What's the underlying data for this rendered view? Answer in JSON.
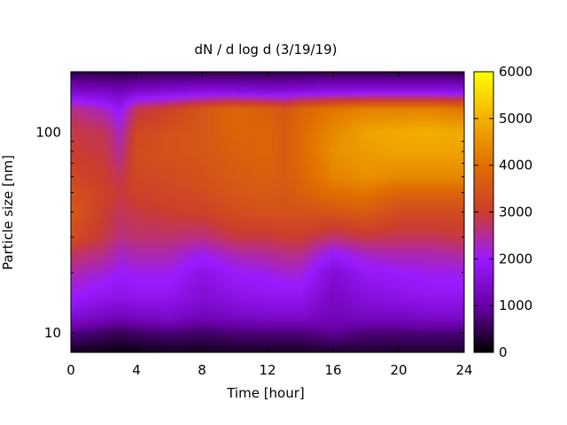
{
  "chart_data": {
    "type": "heatmap",
    "title": "dN / d log d (3/19/19)",
    "xlabel": "Time [hour]",
    "ylabel": "Particle size [nm]",
    "xlim": [
      0,
      24
    ],
    "xticks": [
      0,
      4,
      8,
      12,
      16,
      20,
      24
    ],
    "y_scale": "log",
    "ylim": [
      8,
      200
    ],
    "yticks": [
      10,
      100
    ],
    "colorbar": {
      "min": 0,
      "max": 6000,
      "ticks": [
        0,
        1000,
        2000,
        3000,
        4000,
        5000,
        6000
      ]
    },
    "colormap": [
      "#000000",
      "#6a00a8",
      "#9a1bff",
      "#cc3d2e",
      "#e06f00",
      "#f3b000",
      "#ffff00"
    ],
    "grid": false,
    "x_hours": [
      0,
      2,
      3,
      4,
      6,
      8,
      10,
      12,
      13,
      14,
      16,
      18,
      20,
      22,
      24
    ],
    "size_nm": [
      8,
      10,
      12,
      15,
      20,
      25,
      30,
      40,
      50,
      60,
      80,
      100,
      130,
      160,
      200
    ],
    "dN_dlogd": [
      [
        200,
        800,
        1500,
        2000,
        2400,
        2800,
        3300,
        3600,
        3400,
        3200,
        3000,
        2900,
        2600,
        1400,
        400
      ],
      [
        150,
        600,
        1300,
        1800,
        2200,
        2600,
        2900,
        3000,
        3100,
        3000,
        2900,
        2800,
        2300,
        1300,
        400
      ],
      [
        100,
        500,
        1200,
        1700,
        2000,
        2300,
        2600,
        2800,
        2900,
        2800,
        2500,
        2300,
        1900,
        1200,
        400
      ],
      [
        150,
        600,
        1300,
        1800,
        2100,
        2400,
        2700,
        2900,
        3100,
        3200,
        3300,
        3200,
        2800,
        1400,
        400
      ],
      [
        200,
        700,
        1400,
        1800,
        2100,
        2400,
        2700,
        3000,
        3200,
        3300,
        3400,
        3400,
        3100,
        1500,
        400
      ],
      [
        200,
        600,
        1200,
        1500,
        1700,
        2100,
        2600,
        3100,
        3300,
        3400,
        3500,
        3500,
        3500,
        1600,
        400
      ],
      [
        250,
        700,
        1300,
        1700,
        2000,
        2400,
        2900,
        3300,
        3500,
        3600,
        3700,
        3800,
        3800,
        1600,
        400
      ],
      [
        250,
        700,
        1400,
        1800,
        2100,
        2500,
        2900,
        3400,
        3600,
        3700,
        3800,
        3800,
        3700,
        1500,
        400
      ],
      [
        250,
        700,
        1400,
        1800,
        2200,
        2600,
        3000,
        3400,
        3500,
        3600,
        3600,
        3600,
        3500,
        1500,
        400
      ],
      [
        250,
        700,
        1400,
        1800,
        2200,
        2600,
        3000,
        3400,
        3700,
        3800,
        3900,
        3900,
        3800,
        1600,
        400
      ],
      [
        300,
        900,
        1200,
        1300,
        1500,
        2000,
        2700,
        3500,
        4000,
        4300,
        4500,
        4400,
        4100,
        1700,
        400
      ],
      [
        300,
        700,
        1300,
        1600,
        1900,
        2300,
        2900,
        3600,
        4100,
        4500,
        4700,
        4800,
        4300,
        1700,
        400
      ],
      [
        300,
        700,
        1300,
        1700,
        2000,
        2400,
        2800,
        3300,
        3800,
        4400,
        4800,
        4900,
        4300,
        1700,
        400
      ],
      [
        300,
        700,
        1400,
        1800,
        2100,
        2400,
        2800,
        3300,
        3800,
        4400,
        4800,
        5000,
        4300,
        1700,
        400
      ],
      [
        300,
        700,
        1400,
        1800,
        2100,
        2500,
        2900,
        3300,
        3800,
        4400,
        4800,
        4900,
        4100,
        1700,
        400
      ]
    ]
  }
}
